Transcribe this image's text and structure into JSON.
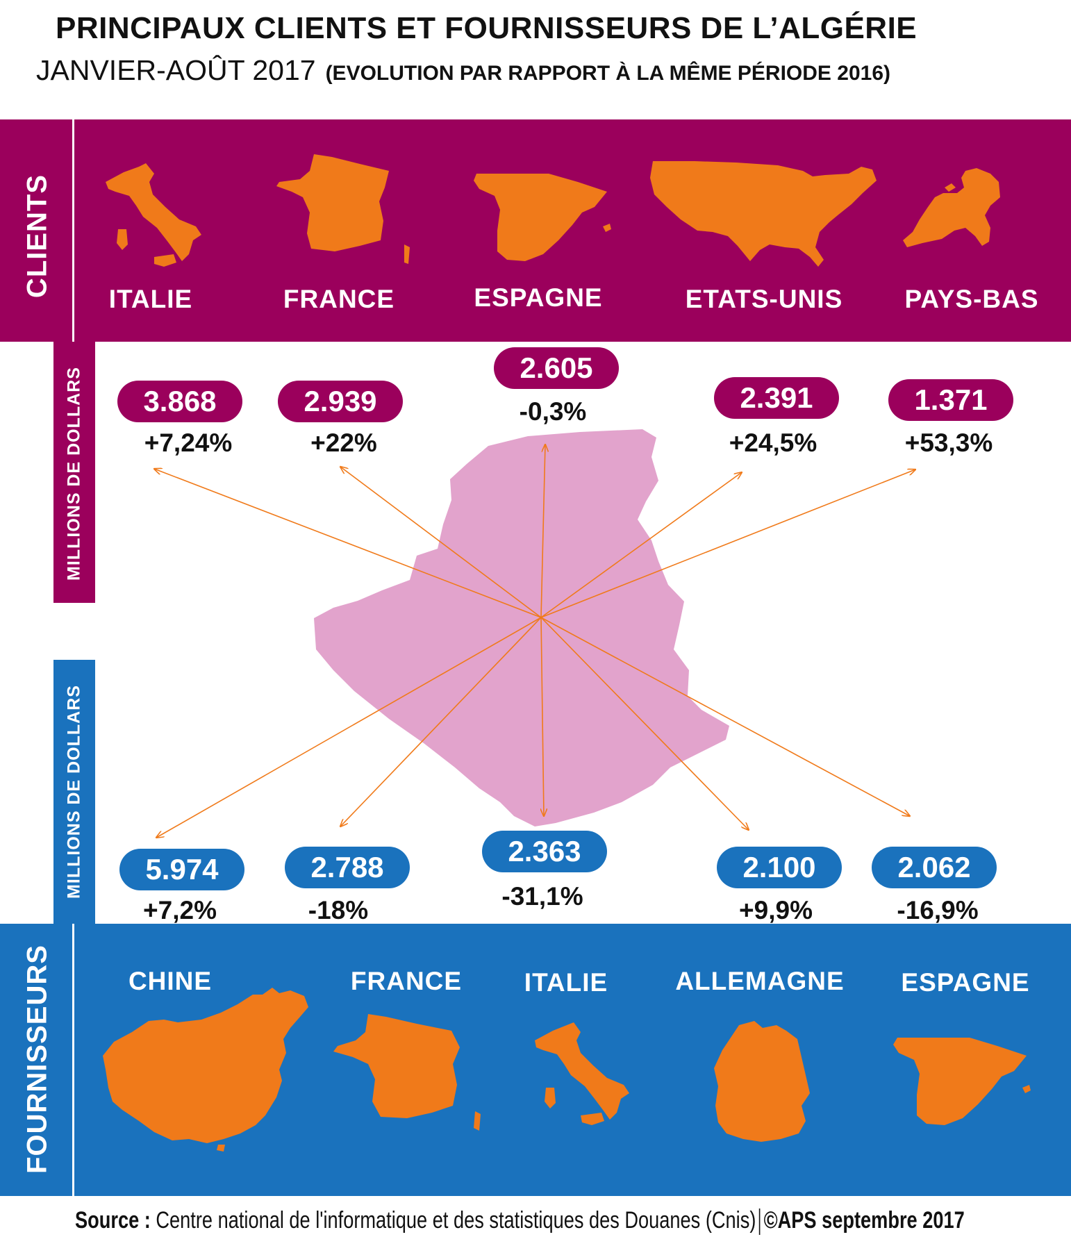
{
  "header": {
    "title": "PRINCIPAUX CLIENTS  ET FOURNISSEURS DE L’ALGÉRIE",
    "period": "JANVIER-AOÛT 2017",
    "note": "(EVOLUTION PAR RAPPORT À LA MÊME PÉRIODE 2016)"
  },
  "clients_label": "CLIENTS",
  "suppliers_label": "FOURNISSEURS",
  "units_label": "MILLIONS DE DOLLARS",
  "colors": {
    "clients": "#9b005c",
    "suppliers": "#1a72bd",
    "country_shape": "#f07a1a",
    "algeria_map": "#e2a3cc",
    "arrows": "#f07a1a"
  },
  "chart_data": {
    "type": "bar",
    "title": "PRINCIPAUX CLIENTS  ET FOURNISSEURS DE L’ALGÉRIE",
    "subtitle": "JANVIER-AOÛT 2017 (EVOLUTION PAR RAPPORT À LA MÊME PÉRIODE 2016)",
    "unit": "MILLIONS DE DOLLARS",
    "clients": [
      {
        "country": "ITALIE",
        "value": "3.868",
        "change": "+7,24%",
        "icon": "italy-map-icon"
      },
      {
        "country": "FRANCE",
        "value": "2.939",
        "change": "+22%",
        "icon": "france-map-icon"
      },
      {
        "country": "ESPAGNE",
        "value": "2.605",
        "change": "-0,3%",
        "icon": "spain-map-icon"
      },
      {
        "country": "ETATS-UNIS",
        "value": "2.391",
        "change": "+24,5%",
        "icon": "usa-map-icon"
      },
      {
        "country": "PAYS-BAS",
        "value": "1.371",
        "change": "+53,3%",
        "icon": "netherlands-map-icon"
      }
    ],
    "suppliers": [
      {
        "country": "CHINE",
        "value": "5.974",
        "change": "+7,2%",
        "icon": "china-map-icon"
      },
      {
        "country": "FRANCE",
        "value": "2.788",
        "change": "-18%",
        "icon": "france-map-icon"
      },
      {
        "country": "ITALIE",
        "value": "2.363",
        "change": "-31,1%",
        "icon": "italy-map-icon"
      },
      {
        "country": "ALLEMAGNE",
        "value": "2.100",
        "change": "+9,9%",
        "icon": "germany-map-icon"
      },
      {
        "country": "ESPAGNE",
        "value": "2.062",
        "change": "-16,9%",
        "icon": "spain-map-icon"
      }
    ]
  },
  "footer": {
    "source_label": "Source :",
    "source_text": "Centre national de l'informatique et des statistiques des Douanes (Cnis)",
    "credit": "©APS septembre 2017"
  }
}
